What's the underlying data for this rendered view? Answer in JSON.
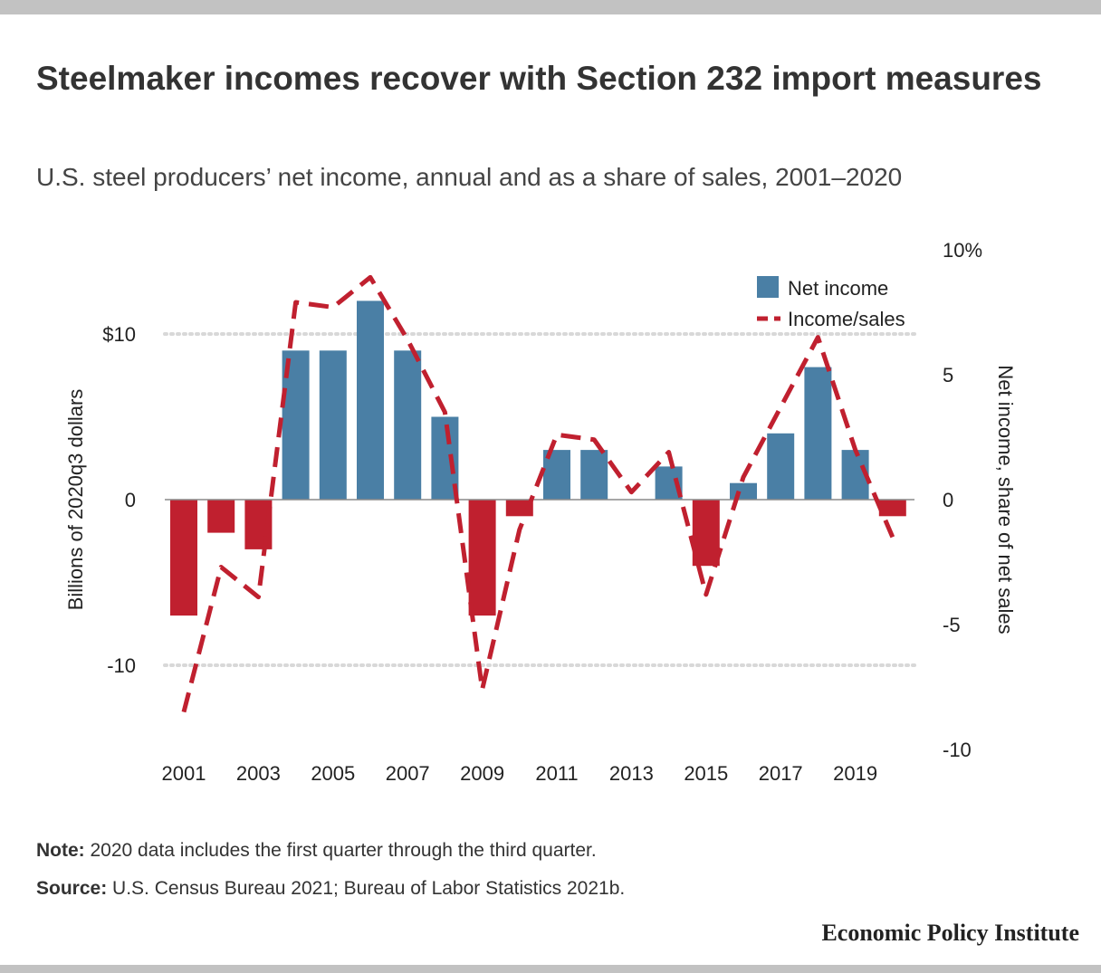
{
  "header": {
    "title": "Steelmaker incomes recover with Section 232 import measures",
    "subtitle": "U.S. steel producers’ net income, annual and as a share of sales, 2001–2020"
  },
  "chart_data": {
    "type": "bar",
    "x": [
      2001,
      2002,
      2003,
      2004,
      2005,
      2006,
      2007,
      2008,
      2009,
      2010,
      2011,
      2012,
      2013,
      2014,
      2015,
      2016,
      2017,
      2018,
      2019,
      2020
    ],
    "x_tick_labels": [
      "2001",
      "2003",
      "2005",
      "2007",
      "2009",
      "2011",
      "2013",
      "2015",
      "2017",
      "2019"
    ],
    "series": [
      {
        "name": "Net income",
        "type": "bar",
        "axis": "left",
        "values": [
          -7,
          -2,
          -3,
          9,
          9,
          12,
          9,
          5,
          -7,
          -1,
          3,
          3,
          0,
          2,
          -4,
          1,
          4,
          8,
          3,
          -1
        ]
      },
      {
        "name": "Income/sales",
        "type": "line",
        "style": "dashed",
        "axis": "right",
        "values": [
          -8.5,
          -2.7,
          -3.9,
          7.9,
          7.7,
          8.9,
          6.4,
          3.5,
          -7.6,
          -1.2,
          2.6,
          2.4,
          0.3,
          1.9,
          -3.8,
          0.9,
          3.7,
          6.5,
          2.0,
          -1.5
        ]
      }
    ],
    "left_axis": {
      "label": "Billions of 2020q3 dollars",
      "ticks": [
        10,
        0,
        -10
      ],
      "tick_labels": [
        "$10",
        "0",
        "-10"
      ],
      "range": [
        -14.5,
        14.5
      ]
    },
    "right_axis": {
      "label": "Net income, share of net sales",
      "ticks": [
        10,
        5,
        0,
        -5,
        -10
      ],
      "tick_labels": [
        "10%",
        "5",
        "0",
        "-5",
        "-10"
      ],
      "range": [
        -10,
        10
      ]
    },
    "grid": "dotted at left-axis ticks",
    "legend_position": "top-right",
    "colors": {
      "positive_bar": "#4a7fa5",
      "negative_bar": "#c0202f",
      "line": "#c0202f",
      "grid": "#d8d8d8",
      "zero_line": "#8a8a8a"
    }
  },
  "notes": {
    "note_label": "Note:",
    "note_text": " 2020 data includes the first quarter through the third quarter.",
    "source_label": "Source:",
    "source_text": " U.S. Census Bureau 2021; Bureau of Labor Statistics 2021b."
  },
  "brand": "Economic Policy Institute"
}
